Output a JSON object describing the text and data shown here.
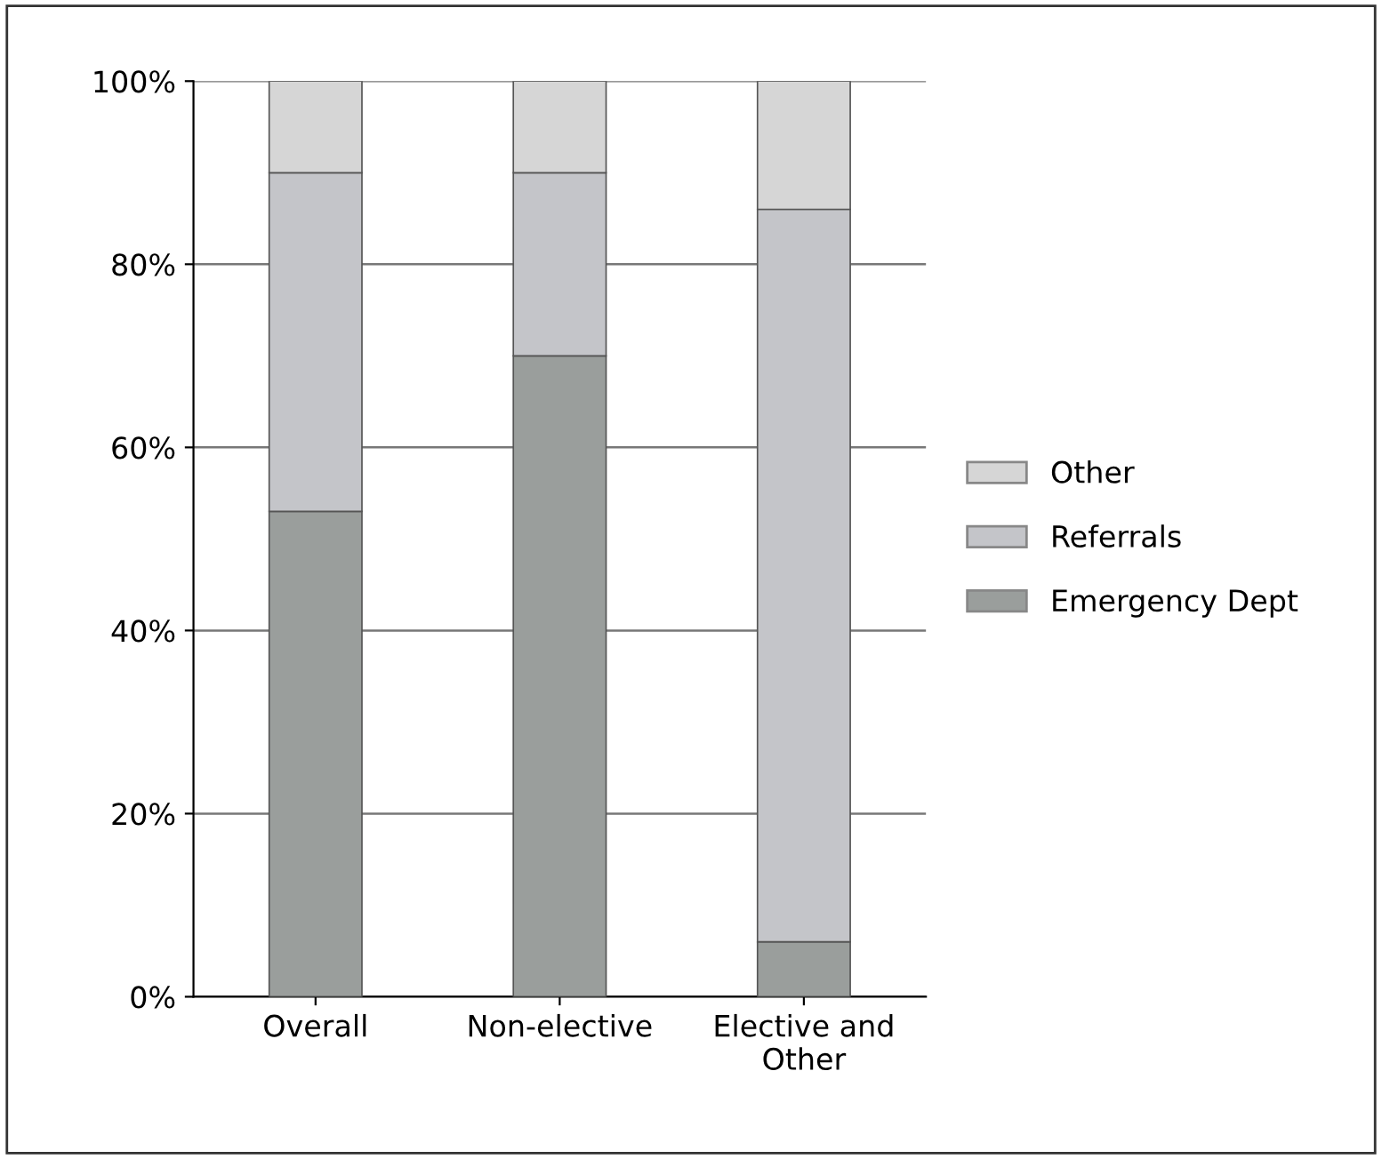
{
  "chart_data": {
    "type": "bar",
    "stacked": true,
    "categories": [
      "Overall",
      "Non-elective",
      "Elective and\nOther"
    ],
    "series": [
      {
        "name": "Emergency Dept",
        "color": "#9a9e9c",
        "values": [
          53,
          70,
          6
        ]
      },
      {
        "name": "Referrals",
        "color": "#c4c5c9",
        "values": [
          37,
          20,
          80
        ]
      },
      {
        "name": "Other",
        "color": "#d6d6d6",
        "values": [
          10,
          10,
          14
        ]
      }
    ],
    "ylim": [
      0,
      100
    ],
    "yticks": [
      {
        "value": 0,
        "label": "0%"
      },
      {
        "value": 20,
        "label": "20%"
      },
      {
        "value": 40,
        "label": "40%"
      },
      {
        "value": 60,
        "label": "60%"
      },
      {
        "value": 80,
        "label": "80%"
      },
      {
        "value": 100,
        "label": "100%"
      }
    ],
    "grid": "y",
    "legend": "right"
  }
}
